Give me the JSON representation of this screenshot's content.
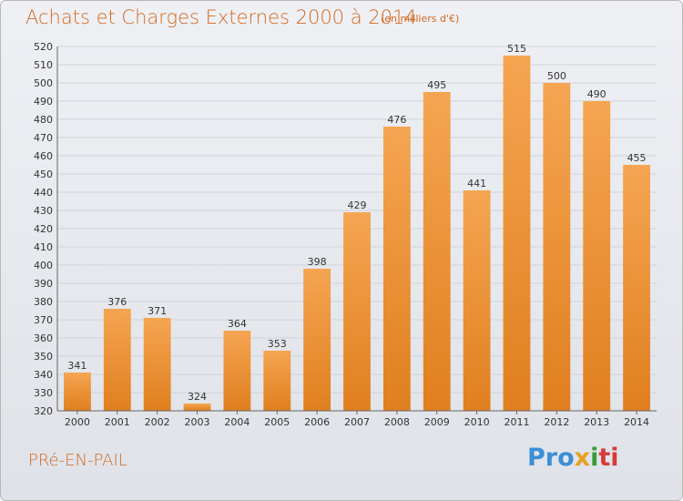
{
  "header": {
    "title": "Achats et Charges Externes 2000 à 2014",
    "subtitle": "(en milliers d'€)"
  },
  "footer": {
    "commune": "PRé-EN-PAIL",
    "logo_parts": [
      "Pro",
      "x",
      "i",
      "ti"
    ]
  },
  "colors": {
    "bar_top": "#f5a552",
    "bar_bottom": "#e07f1f",
    "accent": "#d4691f",
    "grid": "#cfd3da"
  },
  "chart_data": {
    "type": "bar",
    "title": "Achats et Charges Externes 2000 à 2014",
    "subtitle": "(en milliers d'€)",
    "categories": [
      "2000",
      "2001",
      "2002",
      "2003",
      "2004",
      "2005",
      "2006",
      "2007",
      "2008",
      "2009",
      "2010",
      "2011",
      "2012",
      "2013",
      "2014"
    ],
    "values": [
      341,
      376,
      371,
      324,
      364,
      353,
      398,
      429,
      476,
      495,
      441,
      515,
      500,
      490,
      455
    ],
    "ylim": [
      320,
      520
    ],
    "ystep": 10,
    "grid": true
  }
}
